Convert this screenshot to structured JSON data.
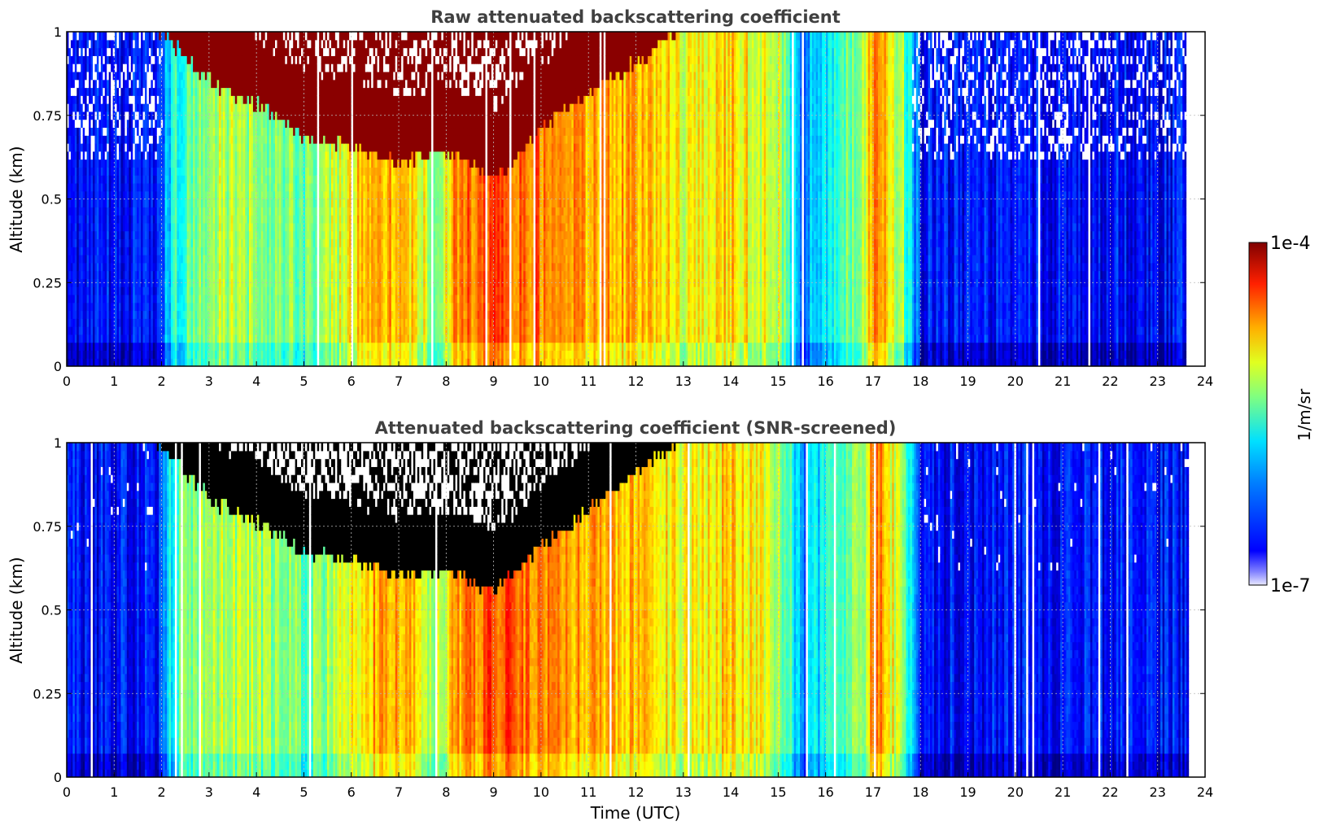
{
  "chart_data": [
    {
      "type": "heatmap",
      "title": "Raw attenuated backscattering coefficient",
      "xlabel": "",
      "ylabel": "Altitude (km)",
      "xlim": [
        0,
        24
      ],
      "ylim": [
        0,
        1
      ],
      "x_ticks": [
        "0",
        "1",
        "2",
        "3",
        "4",
        "5",
        "6",
        "7",
        "8",
        "9",
        "10",
        "11",
        "12",
        "13",
        "14",
        "15",
        "16",
        "17",
        "18",
        "19",
        "20",
        "21",
        "22",
        "23",
        "24"
      ],
      "y_ticks": [
        "0",
        "0.25",
        "0.5",
        "0.75",
        "1"
      ],
      "grid": true,
      "data_end_hour": 23.65,
      "cloud_top_layer": {
        "description_values": "log10 backscatter (1/m/sr) of strong layer near top",
        "hours": [
          1.9,
          3,
          4,
          5,
          6,
          7,
          8,
          9,
          10,
          11,
          12,
          12.9
        ],
        "base_km": [
          1.0,
          0.84,
          0.77,
          0.67,
          0.65,
          0.6,
          0.63,
          0.55,
          0.7,
          0.8,
          0.9,
          1.0
        ]
      },
      "column_intensity_log10": {
        "hours": [
          0,
          1.9,
          2.2,
          3,
          4,
          5,
          6,
          6.5,
          7,
          7.8,
          8.2,
          9,
          10,
          11,
          12,
          13,
          14,
          15,
          15.5,
          16.8,
          17,
          17.6,
          18,
          23.65
        ],
        "values": [
          -6.6,
          -6.6,
          -5.8,
          -5.3,
          -5.4,
          -5.6,
          -5.1,
          -4.9,
          -4.8,
          -5.4,
          -4.8,
          -4.6,
          -4.7,
          -4.9,
          -4.9,
          -5.2,
          -5.0,
          -5.3,
          -6.2,
          -5.3,
          -4.7,
          -5.4,
          -6.6,
          -6.6
        ]
      }
    },
    {
      "type": "heatmap",
      "title": "Attenuated backscattering coefficient (SNR-screened)",
      "xlabel": "Time (UTC)",
      "ylabel": "Altitude (km)",
      "xlim": [
        0,
        24
      ],
      "ylim": [
        0,
        1
      ],
      "x_ticks": [
        "0",
        "1",
        "2",
        "3",
        "4",
        "5",
        "6",
        "7",
        "8",
        "9",
        "10",
        "11",
        "12",
        "13",
        "14",
        "15",
        "16",
        "17",
        "18",
        "19",
        "20",
        "21",
        "22",
        "23",
        "24"
      ],
      "y_ticks": [
        "0",
        "0.25",
        "0.5",
        "0.75",
        "1"
      ],
      "grid": true,
      "data_end_hour": 23.65,
      "screened_layer_color": "#000000",
      "cloud_top_layer": {
        "hours": [
          1.8,
          3,
          4,
          5,
          6,
          7,
          8,
          9,
          10,
          11,
          12,
          12.9
        ],
        "base_km": [
          1.0,
          0.82,
          0.75,
          0.66,
          0.64,
          0.59,
          0.61,
          0.54,
          0.68,
          0.79,
          0.9,
          1.0
        ]
      },
      "column_intensity_log10": {
        "hours": [
          0,
          1.9,
          2.2,
          3,
          4,
          5,
          6,
          6.5,
          7,
          7.8,
          8.2,
          9,
          10,
          11,
          12,
          13,
          14,
          15,
          15.5,
          16.8,
          17,
          17.6,
          18,
          23.65
        ],
        "values": [
          -6.6,
          -6.6,
          -5.8,
          -5.3,
          -5.4,
          -5.6,
          -5.1,
          -4.9,
          -4.8,
          -5.4,
          -4.8,
          -4.6,
          -4.7,
          -4.9,
          -4.9,
          -5.2,
          -5.0,
          -5.3,
          -6.2,
          -5.3,
          -4.7,
          -5.4,
          -6.6,
          -6.6
        ]
      }
    }
  ],
  "colorbar": {
    "label": "1/m/sr",
    "min_label": "1e-7",
    "max_label": "1e-4",
    "min_log10": -7,
    "max_log10": -4,
    "colormap": "jet"
  }
}
